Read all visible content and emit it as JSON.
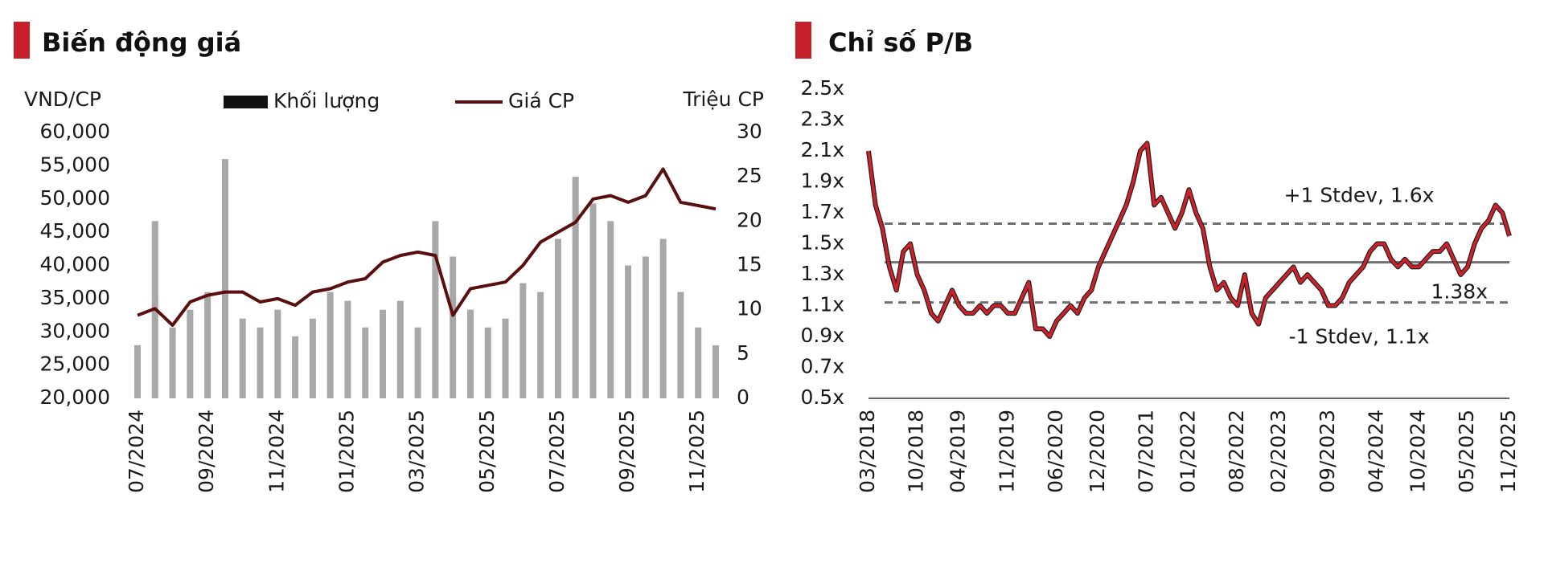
{
  "chart_data": [
    {
      "type": "combo",
      "title": "Biến động giá",
      "y_label": "VND/CP",
      "y2_label": "Triệu CP",
      "categories": [
        "07/2024",
        null,
        null,
        null,
        "09/2024",
        null,
        null,
        null,
        "11/2024",
        null,
        null,
        null,
        "01/2025",
        null,
        null,
        null,
        "03/2025",
        null,
        null,
        null,
        "05/2025",
        null,
        null,
        null,
        "07/2025",
        null,
        null,
        null,
        "09/2025",
        null,
        null,
        null,
        "11/2025",
        null
      ],
      "ylim": [
        20000,
        60000
      ],
      "yticks": [
        {
          "value": 20000,
          "label": "20,000"
        },
        {
          "value": 25000,
          "label": "25,000"
        },
        {
          "value": 30000,
          "label": "30,000"
        },
        {
          "value": 35000,
          "label": "35,000"
        },
        {
          "value": 40000,
          "label": "40,000"
        },
        {
          "value": 45000,
          "label": "45,000"
        },
        {
          "value": 50000,
          "label": "50,000"
        },
        {
          "value": 55000,
          "label": "55,000"
        },
        {
          "value": 60000,
          "label": "60,000"
        }
      ],
      "y2lim": [
        0,
        30
      ],
      "y2ticks": [
        0,
        5,
        10,
        15,
        20,
        25,
        30
      ],
      "series": [
        {
          "name": "Khối lượng",
          "kind": "bar",
          "axis": "y2",
          "color": "#a8a8a8",
          "legend_color": "#111111",
          "values": [
            6,
            20,
            8,
            10,
            12,
            27,
            9,
            8,
            10,
            7,
            9,
            12,
            11,
            8,
            10,
            11,
            8,
            20,
            16,
            10,
            8,
            9,
            13,
            12,
            18,
            25,
            22,
            20,
            15,
            16,
            18,
            12,
            8,
            6
          ]
        },
        {
          "name": "Giá CP",
          "kind": "line",
          "color": "#5a0f0f",
          "values": [
            32500,
            33500,
            31000,
            34500,
            35500,
            36000,
            36000,
            34500,
            35000,
            34000,
            36000,
            36500,
            37500,
            38000,
            40500,
            41500,
            42000,
            41500,
            32500,
            36500,
            37000,
            37500,
            40000,
            43500,
            45000,
            46500,
            50000,
            50500,
            49500,
            50500,
            54500,
            49500,
            49000,
            48500
          ]
        }
      ]
    },
    {
      "type": "line",
      "title": "Chỉ số P/B",
      "categories": [
        "03/2018",
        null,
        null,
        null,
        null,
        null,
        null,
        "10/2018",
        null,
        null,
        null,
        null,
        null,
        "04/2019",
        null,
        null,
        null,
        null,
        null,
        null,
        "11/2019",
        null,
        null,
        null,
        null,
        null,
        null,
        "06/2020",
        null,
        null,
        null,
        null,
        null,
        "12/2020",
        null,
        null,
        null,
        null,
        null,
        null,
        "07/2021",
        null,
        null,
        null,
        null,
        null,
        "01/2022",
        null,
        null,
        null,
        null,
        null,
        null,
        "08/2022",
        null,
        null,
        null,
        null,
        null,
        "02/2023",
        null,
        null,
        null,
        null,
        null,
        null,
        "09/2023",
        null,
        null,
        null,
        null,
        null,
        null,
        "04/2024",
        null,
        null,
        null,
        null,
        null,
        "10/2024",
        null,
        null,
        null,
        null,
        null,
        null,
        "05/2025",
        null,
        null,
        null,
        null,
        null,
        "11/2025"
      ],
      "ylim": [
        0.5,
        2.5
      ],
      "yticks": [
        {
          "value": 0.5,
          "label": "0.5x"
        },
        {
          "value": 0.7,
          "label": "0.7x"
        },
        {
          "value": 0.9,
          "label": "0.9x"
        },
        {
          "value": 1.1,
          "label": "1.1x"
        },
        {
          "value": 1.3,
          "label": "1.3x"
        },
        {
          "value": 1.5,
          "label": "1.5x"
        },
        {
          "value": 1.7,
          "label": "1.7x"
        },
        {
          "value": 1.9,
          "label": "1.9x"
        },
        {
          "value": 2.1,
          "label": "2.1x"
        },
        {
          "value": 2.3,
          "label": "2.3x"
        },
        {
          "value": 2.5,
          "label": "2.5x"
        }
      ],
      "color": "#d0202a",
      "values": [
        2.1,
        1.75,
        1.6,
        1.35,
        1.2,
        1.45,
        1.5,
        1.3,
        1.2,
        1.05,
        1.0,
        1.1,
        1.2,
        1.1,
        1.05,
        1.05,
        1.1,
        1.05,
        1.1,
        1.1,
        1.05,
        1.05,
        1.15,
        1.25,
        0.95,
        0.95,
        0.9,
        1.0,
        1.05,
        1.1,
        1.05,
        1.15,
        1.2,
        1.35,
        1.45,
        1.55,
        1.65,
        1.75,
        1.9,
        2.1,
        2.15,
        1.75,
        1.8,
        1.7,
        1.6,
        1.7,
        1.85,
        1.7,
        1.6,
        1.35,
        1.2,
        1.25,
        1.15,
        1.1,
        1.3,
        1.05,
        0.98,
        1.15,
        1.2,
        1.25,
        1.3,
        1.35,
        1.25,
        1.3,
        1.25,
        1.2,
        1.1,
        1.1,
        1.15,
        1.25,
        1.3,
        1.35,
        1.45,
        1.5,
        1.5,
        1.4,
        1.35,
        1.4,
        1.35,
        1.35,
        1.4,
        1.45,
        1.45,
        1.5,
        1.4,
        1.3,
        1.35,
        1.5,
        1.6,
        1.65,
        1.75,
        1.7,
        1.55
      ],
      "reference_lines": [
        {
          "label": "+1 Stdev, 1.6x",
          "value": 1.63,
          "style": "dashed",
          "color": "#707070"
        },
        {
          "label": "1.38x",
          "value": 1.38,
          "style": "solid",
          "color": "#707070"
        },
        {
          "label": "-1 Stdev, 1.1x",
          "value": 1.12,
          "style": "dashed",
          "color": "#707070"
        }
      ]
    }
  ]
}
